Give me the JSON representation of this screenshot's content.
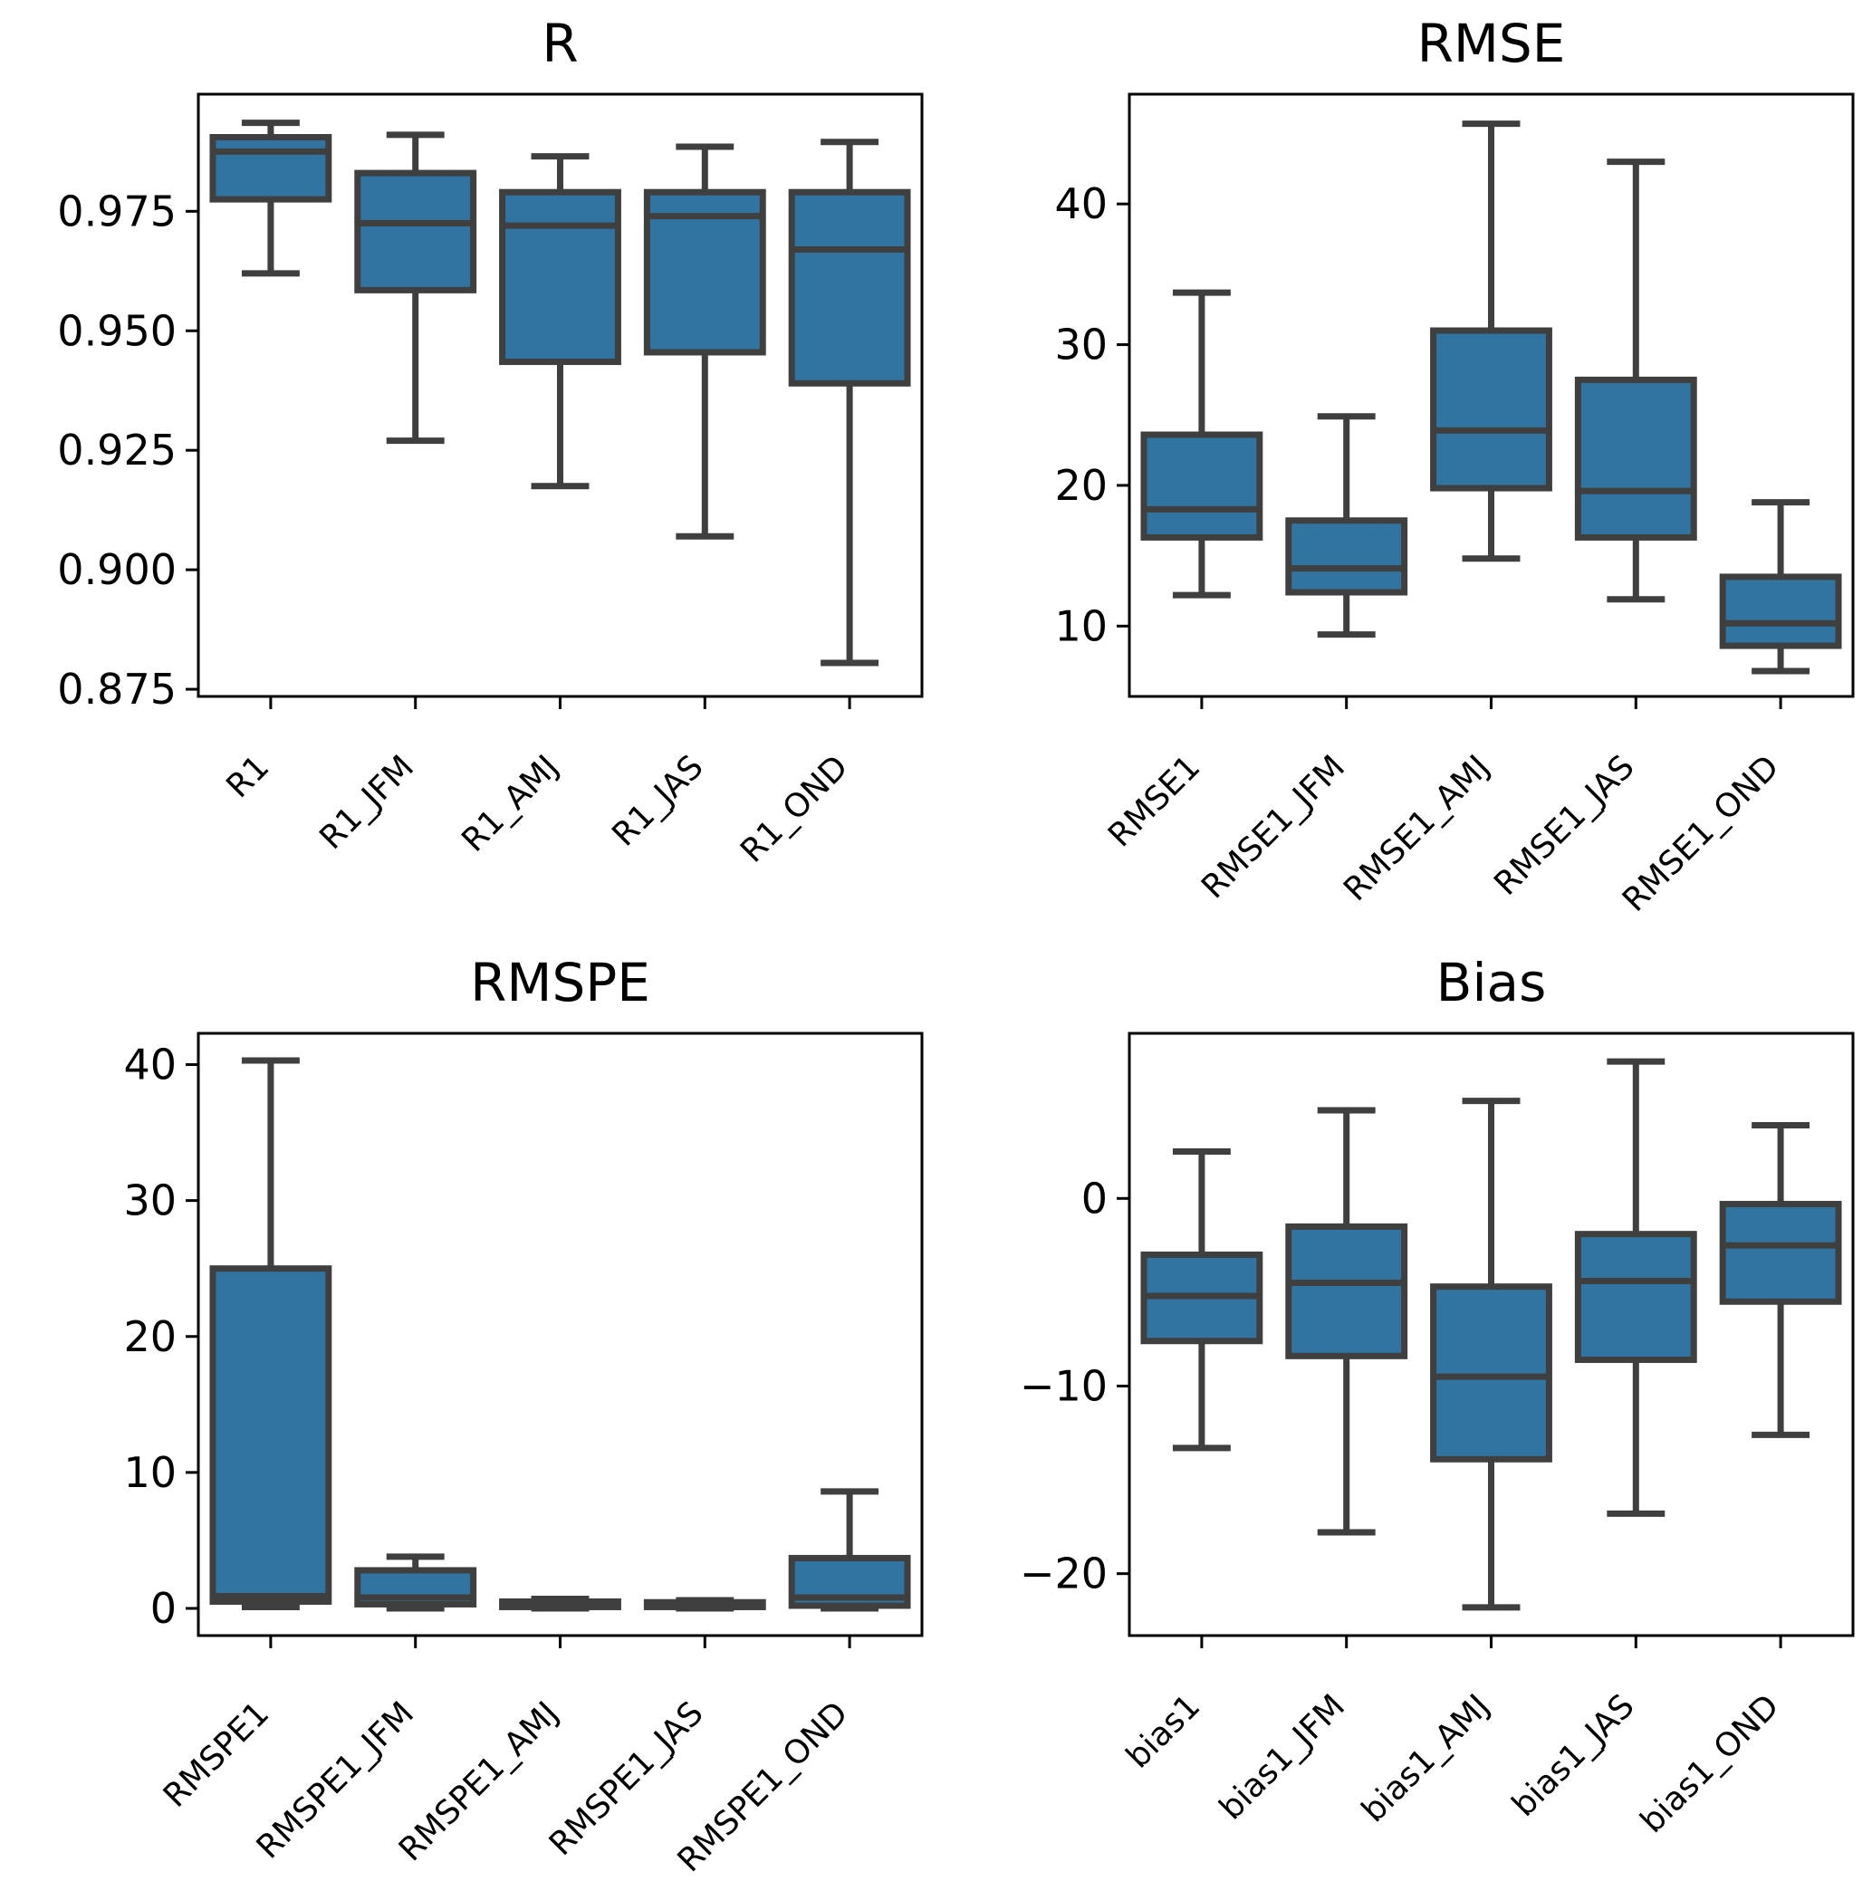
{
  "chart_data": [
    {
      "type": "box",
      "title": "R",
      "xlabel": "",
      "ylabel": "",
      "ylim": [
        0.8735,
        0.9995
      ],
      "yticks": [
        0.875,
        0.9,
        0.925,
        0.95,
        0.975
      ],
      "ytick_labels": [
        "0.875",
        "0.900",
        "0.925",
        "0.950",
        "0.975"
      ],
      "categories": [
        "R1",
        "R1_JFM",
        "R1_AMJ",
        "R1_JAS",
        "R1_OND"
      ],
      "boxes": [
        {
          "whislo": 0.962,
          "q1": 0.9775,
          "med": 0.9875,
          "q3": 0.9905,
          "whishi": 0.9935
        },
        {
          "whislo": 0.927,
          "q1": 0.9585,
          "med": 0.9725,
          "q3": 0.983,
          "whishi": 0.991
        },
        {
          "whislo": 0.9175,
          "q1": 0.9435,
          "med": 0.972,
          "q3": 0.979,
          "whishi": 0.9865
        },
        {
          "whislo": 0.907,
          "q1": 0.9455,
          "med": 0.974,
          "q3": 0.979,
          "whishi": 0.9885
        },
        {
          "whislo": 0.8805,
          "q1": 0.939,
          "med": 0.967,
          "q3": 0.979,
          "whishi": 0.9895
        }
      ],
      "box_color": "#3274a1",
      "line_color": "#3f3f3f",
      "grid": false
    },
    {
      "type": "box",
      "title": "RMSE",
      "xlabel": "",
      "ylabel": "",
      "ylim": [
        5,
        47.8
      ],
      "yticks": [
        10,
        20,
        30,
        40
      ],
      "ytick_labels": [
        "10",
        "20",
        "30",
        "40"
      ],
      "categories": [
        "RMSE1",
        "RMSE1_JFM",
        "RMSE1_AMJ",
        "RMSE1_JAS",
        "RMSE1_OND"
      ],
      "boxes": [
        {
          "whislo": 12.2,
          "q1": 16.3,
          "med": 18.3,
          "q3": 23.6,
          "whishi": 33.7
        },
        {
          "whislo": 9.4,
          "q1": 12.4,
          "med": 14.1,
          "q3": 17.5,
          "whishi": 24.9
        },
        {
          "whislo": 14.8,
          "q1": 19.8,
          "med": 23.9,
          "q3": 31.0,
          "whishi": 45.7
        },
        {
          "whislo": 11.9,
          "q1": 16.3,
          "med": 19.6,
          "q3": 27.5,
          "whishi": 43.0
        },
        {
          "whislo": 6.8,
          "q1": 8.6,
          "med": 10.2,
          "q3": 13.5,
          "whishi": 18.8
        }
      ],
      "box_color": "#3274a1",
      "line_color": "#3f3f3f",
      "grid": false
    },
    {
      "type": "box",
      "title": "RMSPE",
      "xlabel": "",
      "ylabel": "",
      "ylim": [
        -2,
        42.3
      ],
      "yticks": [
        0,
        10,
        20,
        30,
        40
      ],
      "ytick_labels": [
        "0",
        "10",
        "20",
        "30",
        "40"
      ],
      "categories": [
        "RMSPE1",
        "RMSPE1_JFM",
        "RMSPE1_AMJ",
        "RMSPE1_JAS",
        "RMSPE1_OND"
      ],
      "boxes": [
        {
          "whislo": 0.1,
          "q1": 0.5,
          "med": 0.9,
          "q3": 25.0,
          "whishi": 40.3
        },
        {
          "whislo": 0.0,
          "q1": 0.3,
          "med": 0.8,
          "q3": 2.8,
          "whishi": 3.8
        },
        {
          "whislo": 0.0,
          "q1": 0.1,
          "med": 0.3,
          "q3": 0.5,
          "whishi": 0.7
        },
        {
          "whislo": 0.0,
          "q1": 0.1,
          "med": 0.25,
          "q3": 0.45,
          "whishi": 0.6
        },
        {
          "whislo": 0.0,
          "q1": 0.2,
          "med": 0.8,
          "q3": 3.7,
          "whishi": 8.6
        }
      ],
      "box_color": "#3274a1",
      "line_color": "#3f3f3f",
      "grid": false
    },
    {
      "type": "box",
      "title": "Bias",
      "xlabel": "",
      "ylabel": "",
      "ylim": [
        -23.3,
        8.8
      ],
      "yticks": [
        -20,
        -10,
        0
      ],
      "ytick_labels": [
        "−20",
        "−10",
        "0"
      ],
      "categories": [
        "bias1",
        "bias1_JFM",
        "bias1_AMJ",
        "bias1_JAS",
        "bias1_OND"
      ],
      "boxes": [
        {
          "whislo": -13.3,
          "q1": -7.6,
          "med": -5.2,
          "q3": -3.0,
          "whishi": 2.5
        },
        {
          "whislo": -17.8,
          "q1": -8.4,
          "med": -4.5,
          "q3": -1.5,
          "whishi": 4.7
        },
        {
          "whislo": -21.8,
          "q1": -13.9,
          "med": -9.5,
          "q3": -4.7,
          "whishi": 5.2
        },
        {
          "whislo": -16.8,
          "q1": -8.6,
          "med": -4.4,
          "q3": -1.9,
          "whishi": 7.3
        },
        {
          "whislo": -12.6,
          "q1": -5.5,
          "med": -2.5,
          "q3": -0.3,
          "whishi": 3.9
        }
      ],
      "box_color": "#3274a1",
      "line_color": "#3f3f3f",
      "grid": false
    }
  ]
}
